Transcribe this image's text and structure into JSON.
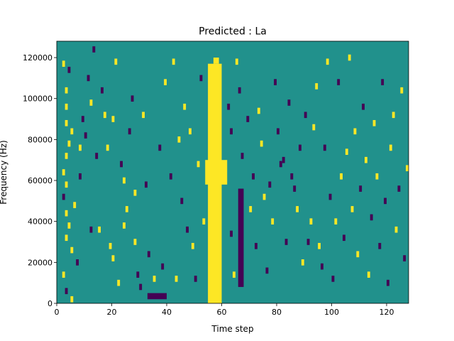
{
  "chart_data": {
    "type": "heatmap",
    "title": "Predicted : La",
    "xlabel": "Time step",
    "ylabel": "Frequency (Hz)",
    "xlim": [
      0,
      128
    ],
    "ylim": [
      0,
      128000
    ],
    "x_ticks": [
      0,
      20,
      40,
      60,
      80,
      100,
      120
    ],
    "y_ticks": [
      0,
      20000,
      40000,
      60000,
      80000,
      100000,
      120000
    ],
    "grid": false,
    "colormap": "viridis (3 levels)",
    "colors": {
      "low": "#440154",
      "mid": "#21918c",
      "high": "#fde725"
    },
    "background_level": "mid",
    "bands": [
      {
        "level": "high",
        "x": [
          55,
          60
        ],
        "y": [
          0,
          117000
        ]
      },
      {
        "level": "high",
        "x": [
          54,
          62
        ],
        "y": [
          58000,
          70000
        ]
      },
      {
        "level": "high",
        "x": [
          57,
          59
        ],
        "y": [
          117000,
          120000
        ]
      },
      {
        "level": "low",
        "x": [
          66,
          68
        ],
        "y": [
          8000,
          56000
        ]
      },
      {
        "level": "low",
        "x": [
          33,
          40
        ],
        "y": [
          2000,
          5000
        ]
      }
    ],
    "cells": [
      {
        "x": 2,
        "y": 117000,
        "level": "high"
      },
      {
        "x": 4,
        "y": 114000,
        "level": "low"
      },
      {
        "x": 3,
        "y": 104000,
        "level": "high"
      },
      {
        "x": 3,
        "y": 96000,
        "level": "high"
      },
      {
        "x": 3,
        "y": 88000,
        "level": "high"
      },
      {
        "x": 5,
        "y": 84000,
        "level": "high"
      },
      {
        "x": 4,
        "y": 78000,
        "level": "high"
      },
      {
        "x": 3,
        "y": 72000,
        "level": "high"
      },
      {
        "x": 2,
        "y": 64000,
        "level": "high"
      },
      {
        "x": 3,
        "y": 58000,
        "level": "high"
      },
      {
        "x": 2,
        "y": 52000,
        "level": "low"
      },
      {
        "x": 3,
        "y": 44000,
        "level": "high"
      },
      {
        "x": 4,
        "y": 38000,
        "level": "high"
      },
      {
        "x": 3,
        "y": 32000,
        "level": "high"
      },
      {
        "x": 5,
        "y": 26000,
        "level": "high"
      },
      {
        "x": 2,
        "y": 14000,
        "level": "high"
      },
      {
        "x": 3,
        "y": 6000,
        "level": "low"
      },
      {
        "x": 5,
        "y": 2000,
        "level": "high"
      },
      {
        "x": 6,
        "y": 48000,
        "level": "high"
      },
      {
        "x": 7,
        "y": 20000,
        "level": "low"
      },
      {
        "x": 8,
        "y": 62000,
        "level": "low"
      },
      {
        "x": 8,
        "y": 76000,
        "level": "high"
      },
      {
        "x": 9,
        "y": 90000,
        "level": "low"
      },
      {
        "x": 10,
        "y": 82000,
        "level": "low"
      },
      {
        "x": 11,
        "y": 110000,
        "level": "low"
      },
      {
        "x": 12,
        "y": 98000,
        "level": "high"
      },
      {
        "x": 12,
        "y": 36000,
        "level": "low"
      },
      {
        "x": 13,
        "y": 124000,
        "level": "low"
      },
      {
        "x": 14,
        "y": 72000,
        "level": "low"
      },
      {
        "x": 15,
        "y": 36000,
        "level": "high"
      },
      {
        "x": 17,
        "y": 92000,
        "level": "high"
      },
      {
        "x": 16,
        "y": 104000,
        "level": "low"
      },
      {
        "x": 18,
        "y": 76000,
        "level": "high"
      },
      {
        "x": 19,
        "y": 28000,
        "level": "high"
      },
      {
        "x": 20,
        "y": 90000,
        "level": "high"
      },
      {
        "x": 20,
        "y": 22000,
        "level": "high"
      },
      {
        "x": 21,
        "y": 118000,
        "level": "high"
      },
      {
        "x": 22,
        "y": 10000,
        "level": "high"
      },
      {
        "x": 23,
        "y": 68000,
        "level": "low"
      },
      {
        "x": 24,
        "y": 60000,
        "level": "high"
      },
      {
        "x": 24,
        "y": 38000,
        "level": "high"
      },
      {
        "x": 25,
        "y": 46000,
        "level": "high"
      },
      {
        "x": 26,
        "y": 84000,
        "level": "low"
      },
      {
        "x": 27,
        "y": 100000,
        "level": "low"
      },
      {
        "x": 28,
        "y": 54000,
        "level": "high"
      },
      {
        "x": 28,
        "y": 30000,
        "level": "high"
      },
      {
        "x": 29,
        "y": 14000,
        "level": "low"
      },
      {
        "x": 30,
        "y": 8000,
        "level": "low"
      },
      {
        "x": 31,
        "y": 92000,
        "level": "high"
      },
      {
        "x": 32,
        "y": 58000,
        "level": "low"
      },
      {
        "x": 33,
        "y": 24000,
        "level": "low"
      },
      {
        "x": 35,
        "y": 12000,
        "level": "high"
      },
      {
        "x": 37,
        "y": 76000,
        "level": "low"
      },
      {
        "x": 38,
        "y": 18000,
        "level": "low"
      },
      {
        "x": 39,
        "y": 108000,
        "level": "high"
      },
      {
        "x": 41,
        "y": 62000,
        "level": "low"
      },
      {
        "x": 42,
        "y": 118000,
        "level": "high"
      },
      {
        "x": 43,
        "y": 12000,
        "level": "high"
      },
      {
        "x": 44,
        "y": 80000,
        "level": "high"
      },
      {
        "x": 45,
        "y": 50000,
        "level": "low"
      },
      {
        "x": 46,
        "y": 96000,
        "level": "high"
      },
      {
        "x": 47,
        "y": 36000,
        "level": "low"
      },
      {
        "x": 48,
        "y": 84000,
        "level": "high"
      },
      {
        "x": 49,
        "y": 28000,
        "level": "high"
      },
      {
        "x": 50,
        "y": 12000,
        "level": "low"
      },
      {
        "x": 51,
        "y": 68000,
        "level": "high"
      },
      {
        "x": 52,
        "y": 110000,
        "level": "low"
      },
      {
        "x": 53,
        "y": 40000,
        "level": "high"
      },
      {
        "x": 62,
        "y": 96000,
        "level": "low"
      },
      {
        "x": 63,
        "y": 84000,
        "level": "low"
      },
      {
        "x": 63,
        "y": 34000,
        "level": "low"
      },
      {
        "x": 64,
        "y": 14000,
        "level": "high"
      },
      {
        "x": 65,
        "y": 118000,
        "level": "high"
      },
      {
        "x": 66,
        "y": 104000,
        "level": "low"
      },
      {
        "x": 67,
        "y": 72000,
        "level": "low"
      },
      {
        "x": 69,
        "y": 90000,
        "level": "low"
      },
      {
        "x": 70,
        "y": 46000,
        "level": "high"
      },
      {
        "x": 71,
        "y": 62000,
        "level": "low"
      },
      {
        "x": 72,
        "y": 28000,
        "level": "low"
      },
      {
        "x": 73,
        "y": 94000,
        "level": "high"
      },
      {
        "x": 74,
        "y": 78000,
        "level": "high"
      },
      {
        "x": 75,
        "y": 52000,
        "level": "high"
      },
      {
        "x": 76,
        "y": 16000,
        "level": "low"
      },
      {
        "x": 77,
        "y": 58000,
        "level": "low"
      },
      {
        "x": 78,
        "y": 40000,
        "level": "high"
      },
      {
        "x": 79,
        "y": 108000,
        "level": "low"
      },
      {
        "x": 80,
        "y": 84000,
        "level": "low"
      },
      {
        "x": 81,
        "y": 68000,
        "level": "low"
      },
      {
        "x": 82,
        "y": 70000,
        "level": "low"
      },
      {
        "x": 83,
        "y": 30000,
        "level": "low"
      },
      {
        "x": 84,
        "y": 98000,
        "level": "low"
      },
      {
        "x": 85,
        "y": 62000,
        "level": "low"
      },
      {
        "x": 86,
        "y": 56000,
        "level": "low"
      },
      {
        "x": 87,
        "y": 46000,
        "level": "high"
      },
      {
        "x": 88,
        "y": 76000,
        "level": "low"
      },
      {
        "x": 89,
        "y": 20000,
        "level": "high"
      },
      {
        "x": 90,
        "y": 92000,
        "level": "low"
      },
      {
        "x": 91,
        "y": 30000,
        "level": "low"
      },
      {
        "x": 92,
        "y": 40000,
        "level": "high"
      },
      {
        "x": 93,
        "y": 86000,
        "level": "high"
      },
      {
        "x": 94,
        "y": 106000,
        "level": "high"
      },
      {
        "x": 95,
        "y": 28000,
        "level": "high"
      },
      {
        "x": 96,
        "y": 18000,
        "level": "low"
      },
      {
        "x": 97,
        "y": 76000,
        "level": "low"
      },
      {
        "x": 98,
        "y": 118000,
        "level": "high"
      },
      {
        "x": 99,
        "y": 52000,
        "level": "low"
      },
      {
        "x": 100,
        "y": 12000,
        "level": "low"
      },
      {
        "x": 101,
        "y": 40000,
        "level": "high"
      },
      {
        "x": 102,
        "y": 108000,
        "level": "low"
      },
      {
        "x": 103,
        "y": 62000,
        "level": "high"
      },
      {
        "x": 104,
        "y": 32000,
        "level": "low"
      },
      {
        "x": 105,
        "y": 74000,
        "level": "high"
      },
      {
        "x": 106,
        "y": 120000,
        "level": "high"
      },
      {
        "x": 107,
        "y": 46000,
        "level": "high"
      },
      {
        "x": 108,
        "y": 84000,
        "level": "high"
      },
      {
        "x": 109,
        "y": 24000,
        "level": "high"
      },
      {
        "x": 110,
        "y": 56000,
        "level": "low"
      },
      {
        "x": 111,
        "y": 96000,
        "level": "low"
      },
      {
        "x": 112,
        "y": 70000,
        "level": "high"
      },
      {
        "x": 113,
        "y": 14000,
        "level": "high"
      },
      {
        "x": 114,
        "y": 42000,
        "level": "low"
      },
      {
        "x": 115,
        "y": 88000,
        "level": "high"
      },
      {
        "x": 116,
        "y": 62000,
        "level": "high"
      },
      {
        "x": 117,
        "y": 28000,
        "level": "low"
      },
      {
        "x": 118,
        "y": 108000,
        "level": "low"
      },
      {
        "x": 119,
        "y": 50000,
        "level": "low"
      },
      {
        "x": 120,
        "y": 10000,
        "level": "low"
      },
      {
        "x": 121,
        "y": 76000,
        "level": "high"
      },
      {
        "x": 122,
        "y": 92000,
        "level": "high"
      },
      {
        "x": 123,
        "y": 36000,
        "level": "high"
      },
      {
        "x": 124,
        "y": 56000,
        "level": "low"
      },
      {
        "x": 125,
        "y": 104000,
        "level": "high"
      },
      {
        "x": 126,
        "y": 22000,
        "level": "low"
      },
      {
        "x": 127,
        "y": 66000,
        "level": "high"
      }
    ]
  }
}
